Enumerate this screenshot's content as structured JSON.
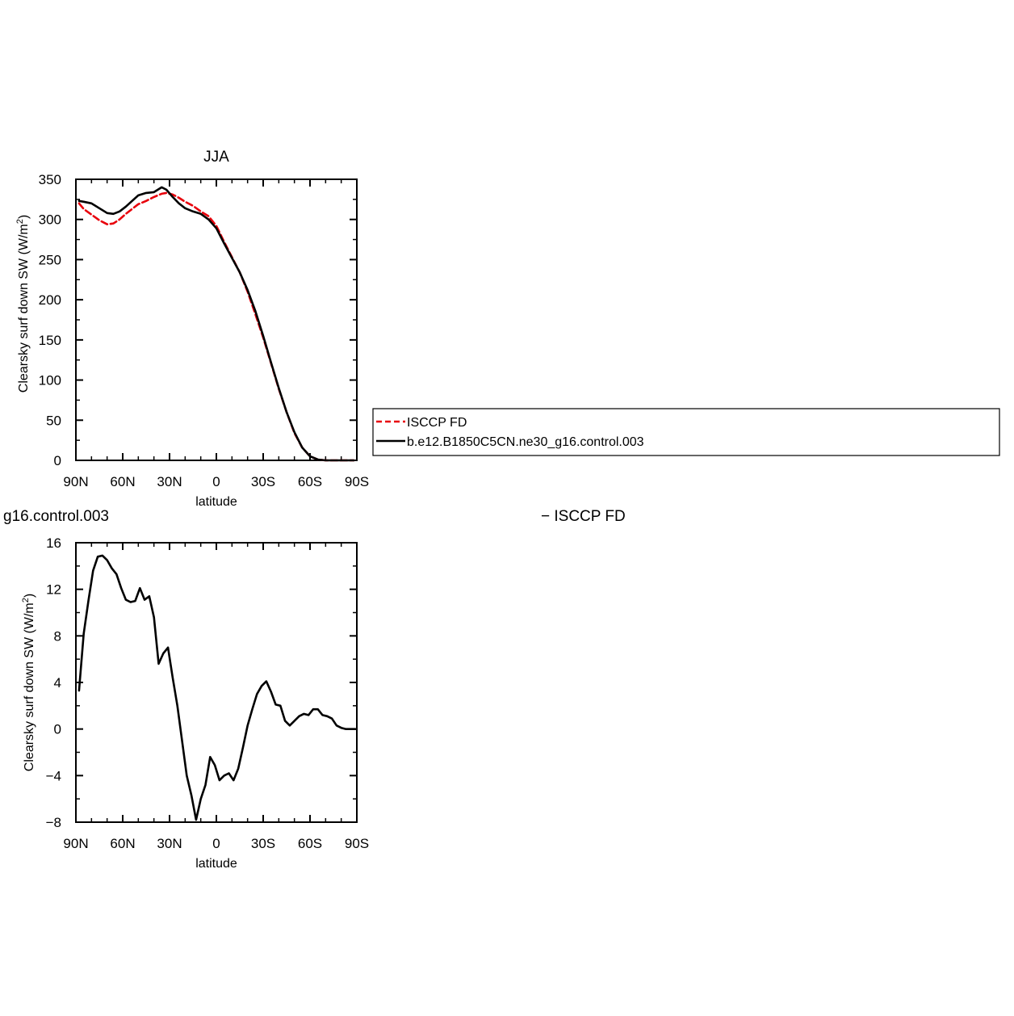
{
  "chart_data": [
    {
      "type": "line",
      "title": "JJA",
      "xlabel": "latitude",
      "ylabel_main": "Clearsky surf down SW (W/m",
      "ylabel_sup": "2",
      "ylabel_tail": ")",
      "xlim": [
        90,
        -90
      ],
      "ylim": [
        0,
        350
      ],
      "x_ticks": [
        90,
        60,
        30,
        0,
        -30,
        -60,
        -90
      ],
      "x_tick_labels": [
        "90N",
        "60N",
        "30N",
        "0",
        "30S",
        "60S",
        "90S"
      ],
      "y_ticks": [
        0,
        50,
        100,
        150,
        200,
        250,
        300,
        350
      ],
      "y_tick_labels": [
        "0",
        "50",
        "100",
        "150",
        "200",
        "250",
        "300",
        "350"
      ],
      "legend": {
        "position": "right",
        "entries": [
          "ISCCP FD",
          "b.e12.B1850C5CN.ne30_g16.control.003"
        ]
      },
      "series": [
        {
          "name": "ISCCP FD",
          "color": "#e8000b",
          "dash": "dashed",
          "x": [
            88,
            85,
            80,
            75,
            70,
            66,
            62,
            58,
            54,
            50,
            45,
            40,
            35,
            32,
            28,
            24,
            20,
            15,
            10,
            5,
            0,
            -5,
            -10,
            -15,
            -20,
            -25,
            -30,
            -35,
            -40,
            -45,
            -50,
            -55,
            -60,
            -65,
            -70,
            -75,
            -80,
            -85,
            -88
          ],
          "values": [
            320,
            313,
            306,
            299,
            294,
            295,
            300,
            307,
            313,
            319,
            323,
            328,
            332,
            333,
            331,
            327,
            322,
            317,
            310,
            304,
            292,
            272,
            253,
            234,
            210,
            182,
            153,
            121,
            89,
            60,
            34,
            16,
            5,
            1,
            0,
            0,
            0,
            0,
            0
          ]
        },
        {
          "name": "b.e12.B1850C5CN.ne30_g16.control.003",
          "color": "#000000",
          "dash": "solid",
          "x": [
            88,
            85,
            80,
            75,
            70,
            66,
            62,
            58,
            54,
            50,
            45,
            40,
            35,
            32,
            28,
            24,
            20,
            15,
            10,
            5,
            0,
            -5,
            -10,
            -15,
            -20,
            -25,
            -30,
            -35,
            -40,
            -45,
            -50,
            -55,
            -60,
            -65,
            -70,
            -75,
            -80,
            -85,
            -88
          ],
          "values": [
            323,
            322,
            320,
            314,
            308,
            307,
            310,
            316,
            323,
            330,
            333,
            334,
            340,
            337,
            328,
            320,
            314,
            310,
            307,
            300,
            289,
            270,
            252,
            234,
            212,
            186,
            155,
            122,
            90,
            60,
            35,
            16,
            5,
            1,
            0,
            0,
            0,
            0,
            0
          ]
        }
      ]
    },
    {
      "type": "line",
      "title": "g16.control.003",
      "title_right": "− ISCCP FD",
      "xlabel": "latitude",
      "ylabel_main": "Clearsky surf down SW (W/m",
      "ylabel_sup": "2",
      "ylabel_tail": ")",
      "xlim": [
        90,
        -90
      ],
      "ylim": [
        -8,
        16
      ],
      "x_ticks": [
        90,
        60,
        30,
        0,
        -30,
        -60,
        -90
      ],
      "x_tick_labels": [
        "90N",
        "60N",
        "30N",
        "0",
        "30S",
        "60S",
        "90S"
      ],
      "y_ticks": [
        -8,
        -4,
        0,
        4,
        8,
        12,
        16
      ],
      "y_tick_labels": [
        "−8",
        "−4",
        "0",
        "4",
        "8",
        "12",
        "16"
      ],
      "series": [
        {
          "color": "#000000",
          "dash": "solid",
          "x": [
            88,
            85,
            82,
            79,
            76,
            73,
            70,
            67,
            64,
            61,
            58,
            55,
            52,
            49,
            46,
            43,
            40,
            37,
            34,
            31,
            28,
            25,
            22,
            19,
            16,
            13,
            10,
            7,
            4,
            1,
            -2,
            -5,
            -8,
            -11,
            -14,
            -17,
            -20,
            -23,
            -26,
            -29,
            -32,
            -35,
            -38,
            -41,
            -44,
            -47,
            -50,
            -53,
            -56,
            -59,
            -62,
            -65,
            -68,
            -71,
            -74,
            -77,
            -80,
            -83,
            -86,
            -89
          ],
          "values": [
            3.3,
            8.2,
            11.0,
            13.6,
            14.8,
            14.9,
            14.5,
            13.8,
            13.3,
            12.1,
            11.1,
            10.9,
            11.0,
            12.1,
            11.1,
            11.4,
            9.6,
            5.6,
            6.5,
            7.0,
            4.4,
            2.0,
            -1.0,
            -4.0,
            -5.7,
            -7.8,
            -6.0,
            -4.8,
            -2.4,
            -3.1,
            -4.4,
            -4.0,
            -3.8,
            -4.4,
            -3.4,
            -1.6,
            0.3,
            1.7,
            3.0,
            3.7,
            4.1,
            3.2,
            2.1,
            2.0,
            0.7,
            0.3,
            0.7,
            1.1,
            1.3,
            1.2,
            1.7,
            1.7,
            1.2,
            1.1,
            0.9,
            0.3,
            0.1,
            0.0,
            0.0,
            0.0
          ]
        }
      ]
    }
  ]
}
